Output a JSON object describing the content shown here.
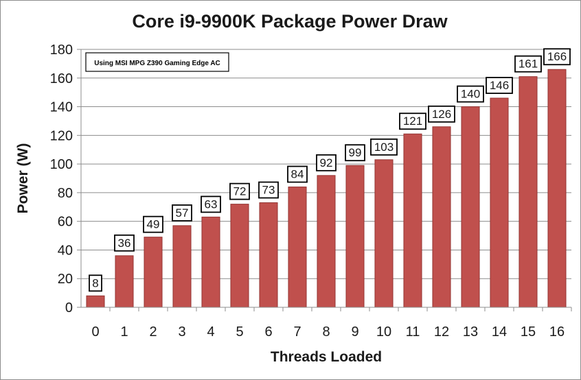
{
  "chart_data": {
    "type": "bar",
    "title": "Core i9-9900K Package Power Draw",
    "xlabel": "Threads Loaded",
    "ylabel": "Power (W)",
    "annotation": "Using MSI MPG Z390 Gaming Edge AC",
    "categories": [
      "0",
      "1",
      "2",
      "3",
      "4",
      "5",
      "6",
      "7",
      "8",
      "9",
      "10",
      "11",
      "12",
      "13",
      "14",
      "15",
      "16"
    ],
    "values": [
      8,
      36,
      49,
      57,
      63,
      72,
      73,
      84,
      92,
      99,
      103,
      121,
      126,
      140,
      146,
      161,
      166
    ],
    "data_labels": [
      "8",
      "36",
      "49",
      "57",
      "63",
      "72",
      "73",
      "84",
      "92",
      "99",
      "103",
      "121",
      "126",
      "140",
      "146",
      "161",
      "166"
    ],
    "ylim": [
      0,
      180
    ],
    "yticks": [
      "0",
      "20",
      "40",
      "60",
      "80",
      "100",
      "120",
      "140",
      "160",
      "180"
    ],
    "grid": true,
    "bar_color": "#c0504d",
    "bar_edge_color": "#943634"
  }
}
